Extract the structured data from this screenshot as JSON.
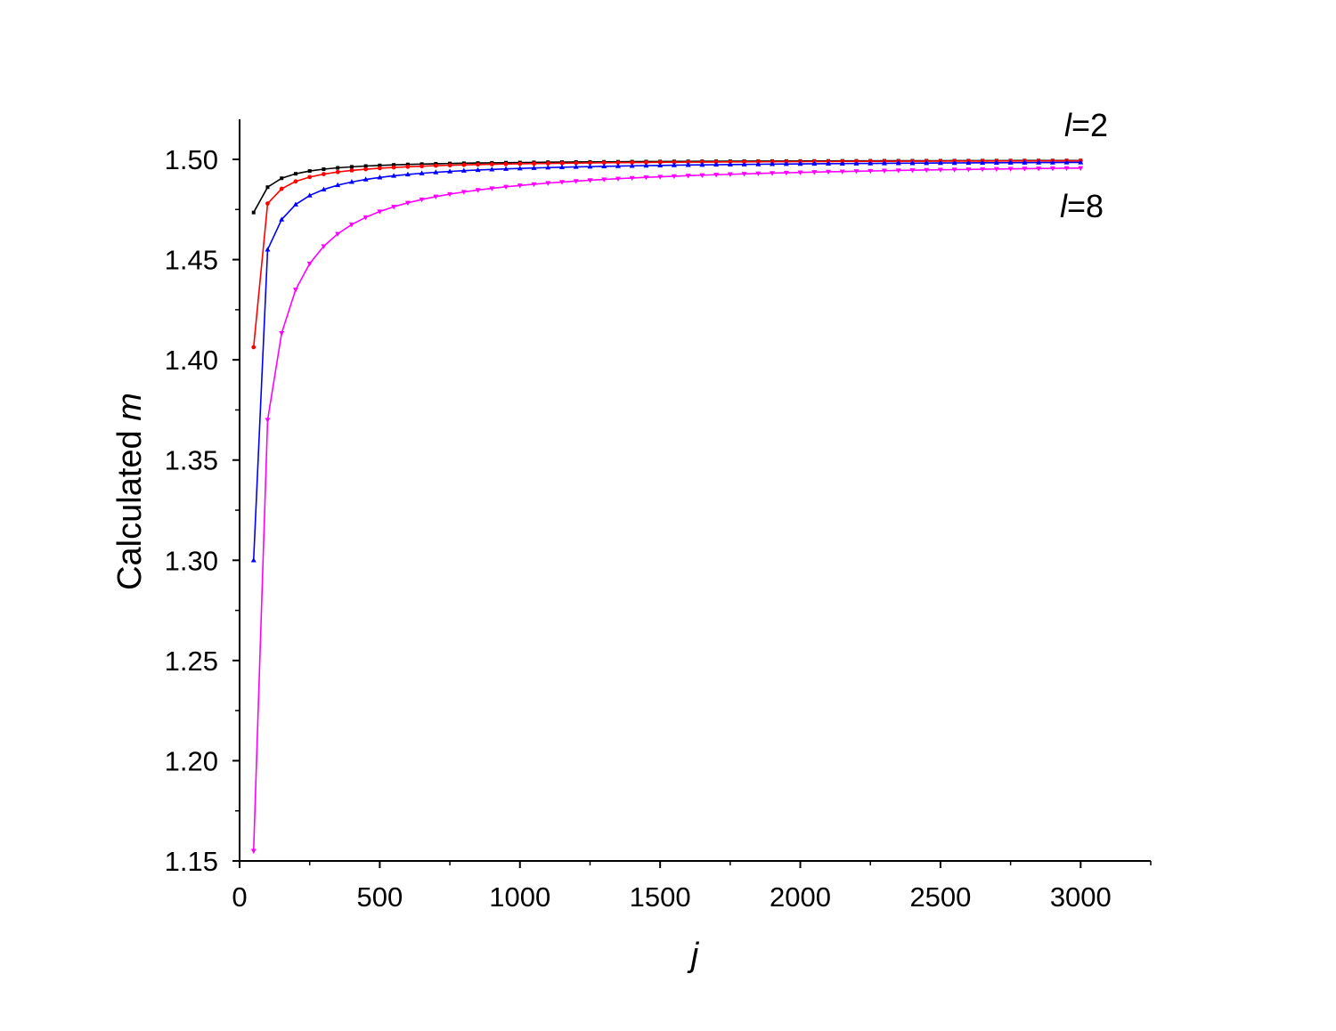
{
  "chart_data": {
    "type": "line",
    "title": "",
    "xlabel": "j",
    "ylabel_prefix": "Calculated ",
    "ylabel_var": "m",
    "xlim": [
      0,
      3250
    ],
    "ylim": [
      1.15,
      1.52
    ],
    "xticks": [
      0,
      500,
      1000,
      1500,
      2000,
      2500,
      3000
    ],
    "xtick_labels": [
      "0",
      "500",
      "1000",
      "1500",
      "2000",
      "2500",
      "3000"
    ],
    "yticks": [
      1.15,
      1.2,
      1.25,
      1.3,
      1.35,
      1.4,
      1.45,
      1.5
    ],
    "ytick_labels": [
      "1.15",
      "1.20",
      "1.25",
      "1.30",
      "1.35",
      "1.40",
      "1.45",
      "1.50"
    ],
    "grid": false,
    "legend": "none",
    "annotations": [
      {
        "var": "l",
        "text": "=2",
        "anchor_series": "black"
      },
      {
        "var": "l",
        "text": "=8",
        "anchor_series": "magenta"
      }
    ],
    "x": [
      50,
      100,
      150,
      200,
      250,
      300,
      350,
      400,
      450,
      500,
      550,
      600,
      650,
      700,
      750,
      800,
      850,
      900,
      950,
      1000,
      1050,
      1100,
      1150,
      1200,
      1250,
      1300,
      1350,
      1400,
      1450,
      1500,
      1550,
      1600,
      1650,
      1700,
      1750,
      1800,
      1850,
      1900,
      1950,
      2000,
      2050,
      2100,
      2150,
      2200,
      2250,
      2300,
      2350,
      2400,
      2450,
      2500,
      2550,
      2600,
      2650,
      2700,
      2750,
      2800,
      2850,
      2900,
      2950,
      3000
    ],
    "series": [
      {
        "color": "#000000",
        "marker": "square",
        "limit": 1.5,
        "first": 1.4735,
        "k": 1.1,
        "p": 0.95
      },
      {
        "color": "#ff0000",
        "marker": "circle",
        "limit": 1.5,
        "first": 1.4063,
        "k": 2.2,
        "p": 1.0
      },
      {
        "color": "#0000ff",
        "marker": "triangle-up",
        "limit": 1.5,
        "first": 1.3,
        "k": 4.5,
        "p": 1.0
      },
      {
        "color": "#ff00ff",
        "marker": "triangle-down",
        "limit": 1.5,
        "first": 1.155,
        "k": 13.0,
        "p": 1.0
      }
    ]
  }
}
